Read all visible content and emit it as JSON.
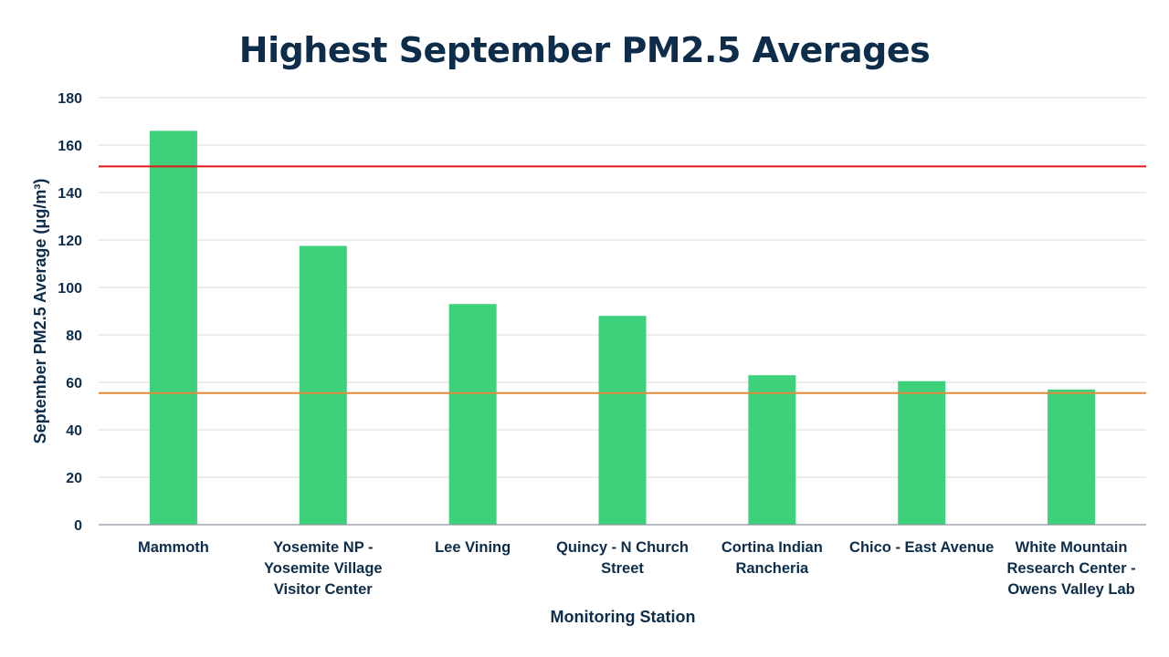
{
  "chart_data": {
    "type": "bar",
    "title": "Highest September PM2.5 Averages",
    "xlabel": "Monitoring Station",
    "ylabel": "September PM2.5 Average (μg/m³)",
    "ylim": [
      0,
      180
    ],
    "yticks": [
      0,
      20,
      40,
      60,
      80,
      100,
      120,
      140,
      160,
      180
    ],
    "grid": true,
    "categories": [
      [
        "Mammoth"
      ],
      [
        "Yosemite NP -",
        "Yosemite Village",
        "Visitor Center"
      ],
      [
        "Lee Vining"
      ],
      [
        "Quincy - N Church",
        "Street"
      ],
      [
        "Cortina Indian",
        "Rancheria"
      ],
      [
        "Chico - East Avenue"
      ],
      [
        "White Mountain",
        "Research Center -",
        "Owens Valley Lab"
      ]
    ],
    "values": [
      166,
      117.5,
      93,
      88,
      63,
      60.5,
      57
    ],
    "bar_color": "#3dd17c",
    "reference_lines": [
      {
        "value": 151,
        "color": "#e3171b"
      },
      {
        "value": 55.5,
        "color": "#e08a3c"
      }
    ]
  }
}
